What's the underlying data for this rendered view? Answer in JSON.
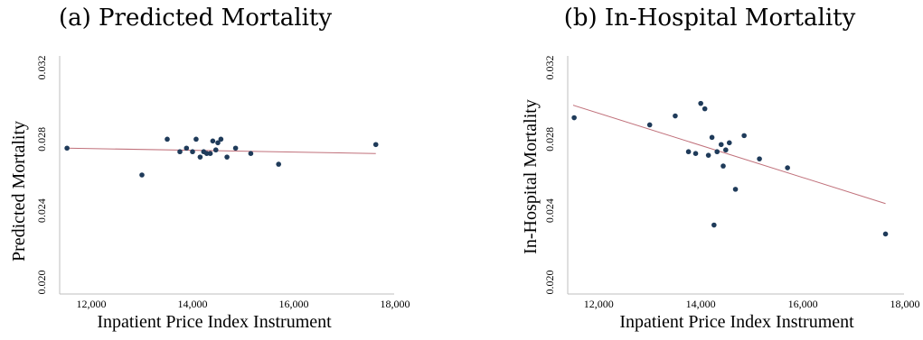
{
  "chart_data": [
    {
      "type": "scatter",
      "title": "(a) Predicted Mortality",
      "xlabel": "Inpatient Price Index Instrument",
      "ylabel": "Predicted Mortality",
      "xlim": [
        11500,
        18000
      ],
      "ylim": [
        0.02,
        0.032
      ],
      "xticks": [
        12000,
        14000,
        16000,
        18000
      ],
      "xtick_labels": [
        "12,000",
        "14,000",
        "16,000",
        "18,000"
      ],
      "yticks": [
        0.02,
        0.024,
        0.028,
        0.032
      ],
      "ytick_labels": [
        "0.020",
        "0.024",
        "0.028",
        "0.032"
      ],
      "grid": false,
      "colors": {
        "points": "#1f3b5a",
        "fit_line": "#c0707a",
        "axis": "#bfbfbf"
      },
      "points": [
        {
          "x": 11520,
          "y": 0.0275
        },
        {
          "x": 13000,
          "y": 0.026
        },
        {
          "x": 13500,
          "y": 0.028
        },
        {
          "x": 13750,
          "y": 0.0273
        },
        {
          "x": 13880,
          "y": 0.0275
        },
        {
          "x": 14000,
          "y": 0.0273
        },
        {
          "x": 14070,
          "y": 0.028
        },
        {
          "x": 14150,
          "y": 0.027
        },
        {
          "x": 14220,
          "y": 0.0273
        },
        {
          "x": 14280,
          "y": 0.0272
        },
        {
          "x": 14350,
          "y": 0.0272
        },
        {
          "x": 14400,
          "y": 0.0279
        },
        {
          "x": 14460,
          "y": 0.0274
        },
        {
          "x": 14500,
          "y": 0.0278
        },
        {
          "x": 14560,
          "y": 0.028
        },
        {
          "x": 14680,
          "y": 0.027
        },
        {
          "x": 14850,
          "y": 0.0275
        },
        {
          "x": 15150,
          "y": 0.0272
        },
        {
          "x": 15700,
          "y": 0.0266
        },
        {
          "x": 17620,
          "y": 0.0277
        }
      ],
      "fit": {
        "x": [
          11500,
          17620
        ],
        "y": [
          0.0275,
          0.0272
        ]
      }
    },
    {
      "type": "scatter",
      "title": "(b) In-Hospital Mortality",
      "xlabel": "Inpatient Price Index Instrument",
      "ylabel": "In-Hospital Mortality",
      "xlim": [
        11500,
        18000
      ],
      "ylim": [
        0.02,
        0.032
      ],
      "xticks": [
        12000,
        14000,
        16000,
        18000
      ],
      "xtick_labels": [
        "12,000",
        "14,000",
        "16,000",
        "18,000"
      ],
      "yticks": [
        0.02,
        0.024,
        0.028,
        0.032
      ],
      "ytick_labels": [
        "0.020",
        "0.024",
        "0.028",
        "0.032"
      ],
      "grid": false,
      "colors": {
        "points": "#1f3b5a",
        "fit_line": "#c0707a",
        "axis": "#bfbfbf"
      },
      "points": [
        {
          "x": 11520,
          "y": 0.0292
        },
        {
          "x": 13000,
          "y": 0.0288
        },
        {
          "x": 13500,
          "y": 0.0293
        },
        {
          "x": 13760,
          "y": 0.0273
        },
        {
          "x": 13900,
          "y": 0.0272
        },
        {
          "x": 14000,
          "y": 0.03
        },
        {
          "x": 14080,
          "y": 0.0297
        },
        {
          "x": 14150,
          "y": 0.0271
        },
        {
          "x": 14220,
          "y": 0.0281
        },
        {
          "x": 14260,
          "y": 0.0232
        },
        {
          "x": 14320,
          "y": 0.0273
        },
        {
          "x": 14400,
          "y": 0.0277
        },
        {
          "x": 14440,
          "y": 0.0265
        },
        {
          "x": 14490,
          "y": 0.0274
        },
        {
          "x": 14560,
          "y": 0.0278
        },
        {
          "x": 14680,
          "y": 0.0252
        },
        {
          "x": 14850,
          "y": 0.0282
        },
        {
          "x": 15150,
          "y": 0.0269
        },
        {
          "x": 15700,
          "y": 0.0264
        },
        {
          "x": 17620,
          "y": 0.0227
        }
      ],
      "fit": {
        "x": [
          11500,
          17620
        ],
        "y": [
          0.0299,
          0.0244
        ]
      }
    }
  ]
}
